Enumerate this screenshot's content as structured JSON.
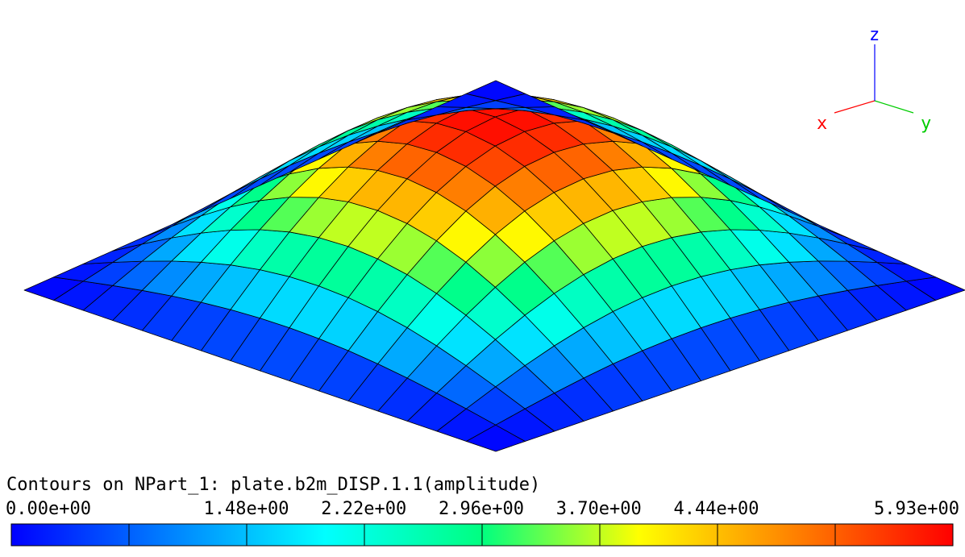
{
  "legend": {
    "title": "Contours on NPart_1: plate.b2m_DISP.1.1(amplitude)",
    "min": 0.0,
    "max": 5.93,
    "tick_values": [
      0.0,
      1.48,
      2.22,
      2.96,
      3.7,
      4.44,
      5.93
    ],
    "tick_labels": [
      "0.00e+00",
      "1.48e+00",
      "2.22e+00",
      "2.96e+00",
      "3.70e+00",
      "4.44e+00",
      "5.93e+00"
    ],
    "segments": 8
  },
  "axes_triad": {
    "x_label": "x",
    "y_label": "y",
    "z_label": "z",
    "x_color": "#ff0000",
    "y_color": "#00cc00",
    "z_color": "#0000ff"
  },
  "colormap": [
    "#0000ff",
    "#0080ff",
    "#00ffff",
    "#00ff80",
    "#ffff00",
    "#ff8000",
    "#ff0000"
  ],
  "mesh": {
    "divisions": 16,
    "peak_amplitude": 5.93
  }
}
